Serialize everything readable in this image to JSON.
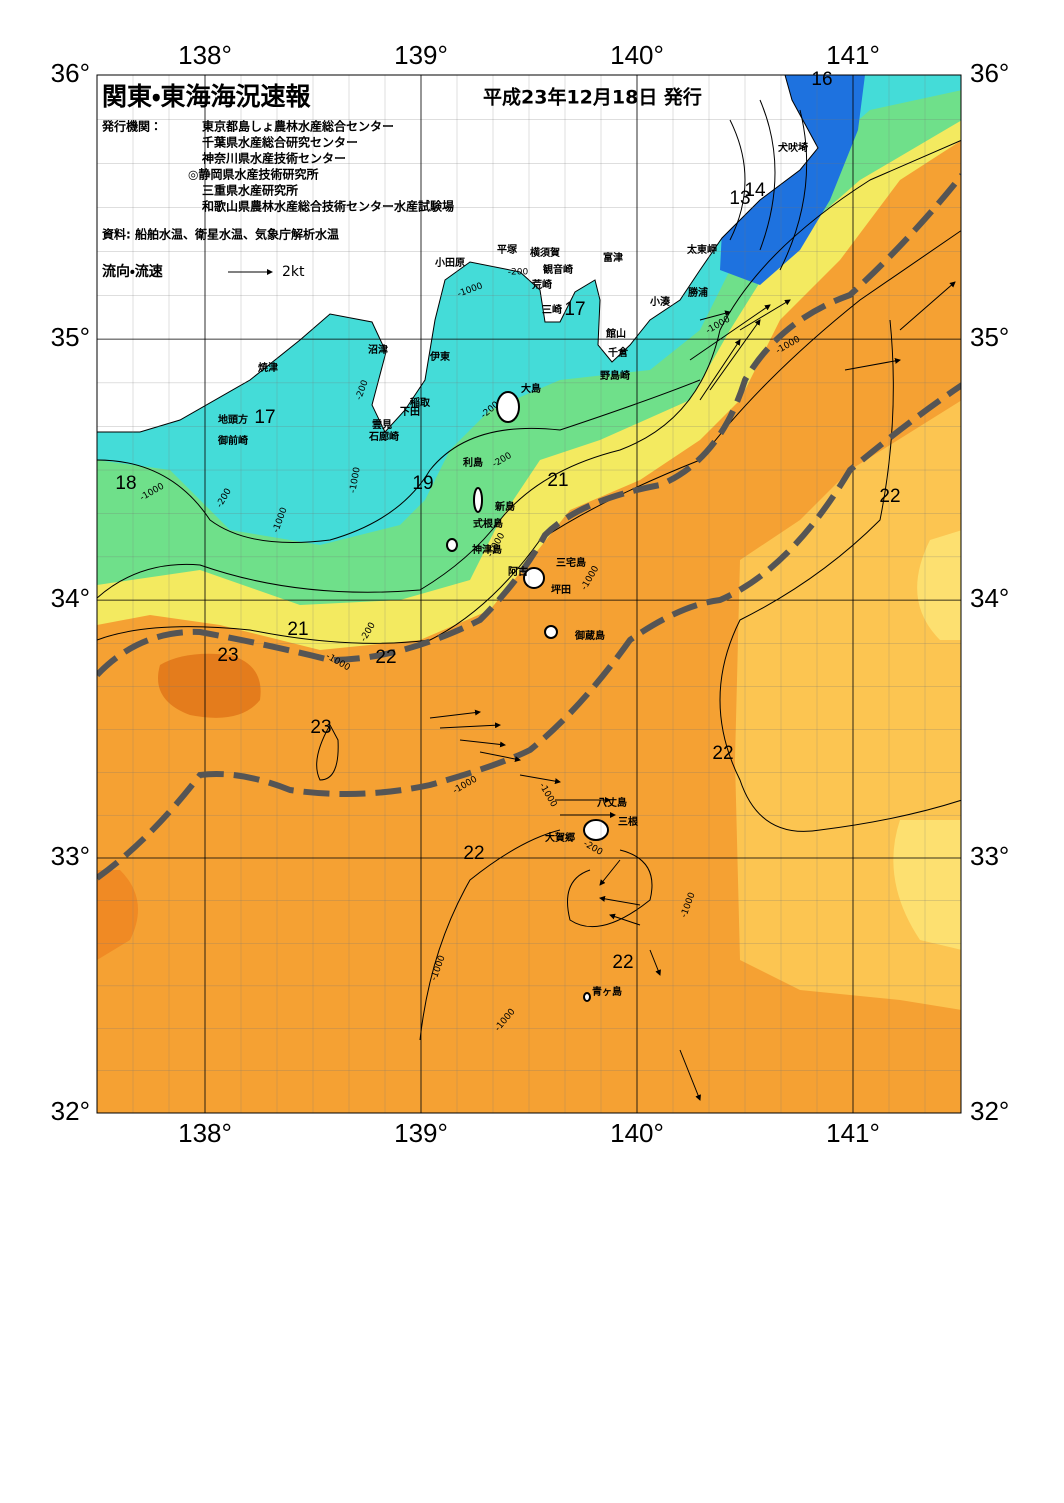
{
  "header": {
    "title": "関東・東海海況速報",
    "date": "平成23年12月18日 発行",
    "issuer_label": "発行機関：",
    "issuers": [
      "東京都島しょ農林水産総合センター",
      "千葉県水産総合研究センター",
      "神奈川県水産技術センター",
      "◎静岡県水産技術研究所",
      "三重県水産研究所",
      "和歌山県農林水産総合技術センター水産試験場"
    ],
    "source": "資料: 船舶水温、衛星水温、気象庁解析水温",
    "legend_label": "流向・流速",
    "legend_scale": "2kt"
  },
  "map": {
    "lonlim": [
      137.5,
      141.5
    ],
    "latlim": [
      32,
      36
    ],
    "lonticks": [
      {
        "value": 138,
        "label": "138°"
      },
      {
        "value": 139,
        "label": "139°"
      },
      {
        "value": 140,
        "label": "140°"
      },
      {
        "value": 141,
        "label": "141°"
      }
    ],
    "latticks": [
      {
        "value": 36,
        "label": "36°"
      },
      {
        "value": 35,
        "label": "35°"
      },
      {
        "value": 34,
        "label": "34°"
      },
      {
        "value": 33,
        "label": "33°"
      },
      {
        "value": 32,
        "label": "32°"
      }
    ],
    "places": [
      "犬吠埼",
      "太東岬",
      "勝浦",
      "小湊",
      "富津",
      "横須賀",
      "観音崎",
      "平塚",
      "荒崎",
      "三崎",
      "小田原",
      "館山",
      "千倉",
      "野島崎",
      "沼津",
      "伊東",
      "焼津",
      "大島",
      "稲取",
      "下田",
      "雲見",
      "石廊崎",
      "地頭方",
      "御前崎",
      "利島",
      "新島",
      "式根島",
      "神津島",
      "三宅島",
      "阿古",
      "坪田",
      "御蔵島",
      "八丈島",
      "三根",
      "大賀郷",
      "青ヶ島"
    ],
    "temperature_labels": [
      "16",
      "14",
      "13",
      "17",
      "17",
      "18",
      "19",
      "21",
      "22",
      "21",
      "23",
      "22",
      "23",
      "22",
      "22",
      "22"
    ],
    "depth_labels": [
      "-200",
      "-1000",
      "-200",
      "-1000",
      "-200",
      "-1000",
      "-1000",
      "-200",
      "-200",
      "-1000",
      "-200",
      "-1000",
      "-1000",
      "-1000",
      "-1000",
      "-1000",
      "-1000",
      "-200",
      "-1000",
      "-1000",
      "-1000"
    ]
  }
}
